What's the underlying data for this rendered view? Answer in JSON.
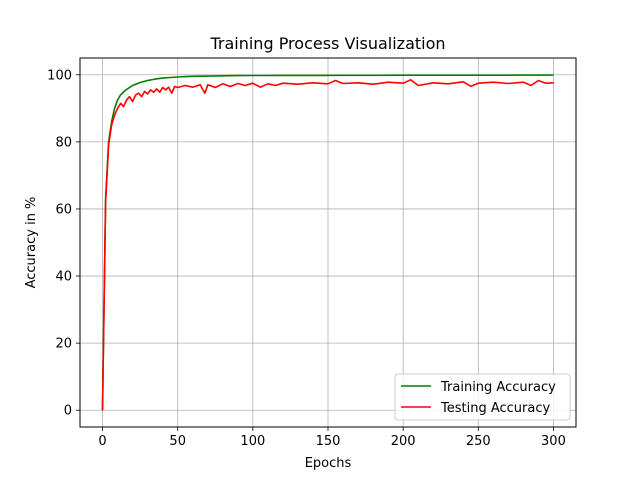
{
  "chart_data": {
    "type": "line",
    "title": "Training Process Visualization",
    "xlabel": "Epochs",
    "ylabel": "Accuracy in %",
    "xlim": [
      -15,
      315
    ],
    "ylim": [
      -5,
      105
    ],
    "xticks": [
      0,
      50,
      100,
      150,
      200,
      250,
      300
    ],
    "yticks": [
      0,
      20,
      40,
      60,
      80,
      100
    ],
    "grid": true,
    "legend_position": "lower-right",
    "series": [
      {
        "name": "Training Accuracy",
        "color": "#008000",
        "x": [
          0,
          2,
          4,
          6,
          8,
          10,
          12,
          15,
          18,
          20,
          25,
          30,
          35,
          40,
          45,
          50,
          55,
          60,
          70,
          80,
          90,
          100,
          120,
          140,
          160,
          180,
          200,
          220,
          240,
          260,
          280,
          300
        ],
        "y": [
          0,
          63,
          80,
          86,
          90,
          92.5,
          94,
          95.3,
          96.2,
          96.8,
          97.7,
          98.3,
          98.7,
          99.0,
          99.2,
          99.35,
          99.45,
          99.55,
          99.6,
          99.7,
          99.75,
          99.78,
          99.8,
          99.82,
          99.84,
          99.85,
          99.86,
          99.87,
          99.88,
          99.88,
          99.89,
          99.9
        ]
      },
      {
        "name": "Testing Accuracy",
        "color": "#ff0000",
        "x": [
          0,
          2,
          4,
          6,
          8,
          10,
          12,
          14,
          16,
          18,
          20,
          22,
          24,
          26,
          28,
          30,
          32,
          34,
          36,
          38,
          40,
          42,
          44,
          46,
          48,
          50,
          55,
          60,
          65,
          68,
          70,
          75,
          80,
          85,
          90,
          95,
          100,
          105,
          110,
          115,
          120,
          130,
          140,
          150,
          155,
          160,
          170,
          180,
          190,
          200,
          205,
          210,
          220,
          230,
          240,
          245,
          250,
          260,
          270,
          280,
          285,
          290,
          295,
          300
        ],
        "y": [
          0,
          62,
          79,
          85,
          88,
          90,
          91.5,
          90.5,
          92.5,
          93.5,
          92,
          94,
          94.5,
          93.5,
          95,
          94.3,
          95.5,
          94.8,
          95.8,
          94.8,
          96.2,
          95.5,
          96.3,
          94.5,
          96.5,
          96.2,
          96.8,
          96.3,
          97,
          94.5,
          97,
          96.2,
          97.3,
          96.5,
          97.4,
          96.8,
          97.5,
          96.3,
          97.3,
          96.8,
          97.5,
          97.2,
          97.6,
          97.3,
          98.3,
          97.4,
          97.6,
          97.2,
          97.8,
          97.5,
          98.5,
          96.8,
          97.6,
          97.3,
          97.9,
          96.6,
          97.5,
          97.8,
          97.4,
          97.8,
          96.8,
          98.3,
          97.5,
          97.6
        ]
      }
    ]
  }
}
